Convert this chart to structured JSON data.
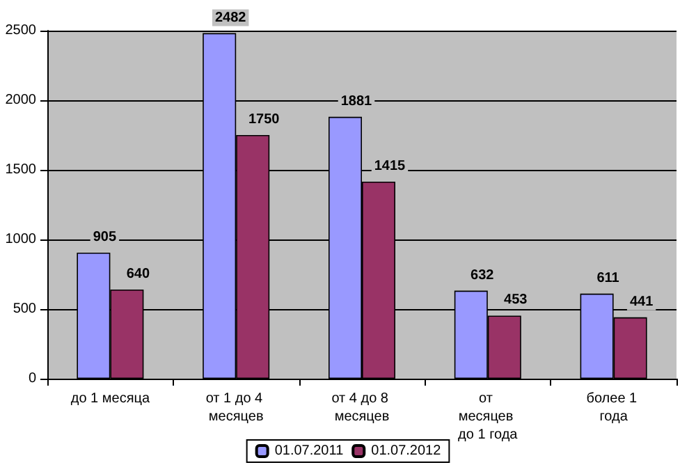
{
  "chart_data": {
    "type": "bar",
    "categories": [
      "до 1 месяца",
      "от 1 до 4 месяцев",
      "от 4 до 8 месяцев",
      "от месяцев до 1 года",
      "более 1 года"
    ],
    "series": [
      {
        "name": "01.07.2011",
        "color": "#9999ff",
        "values": [
          905,
          2482,
          1881,
          632,
          611
        ]
      },
      {
        "name": "01.07.2012",
        "color": "#993366",
        "values": [
          640,
          1750,
          1415,
          453,
          441
        ]
      }
    ],
    "ylim": [
      0,
      2500
    ],
    "yticks": [
      0,
      500,
      1000,
      1500,
      2000,
      2500
    ],
    "grid": "y",
    "legend": "bottom",
    "data_labels": true
  }
}
